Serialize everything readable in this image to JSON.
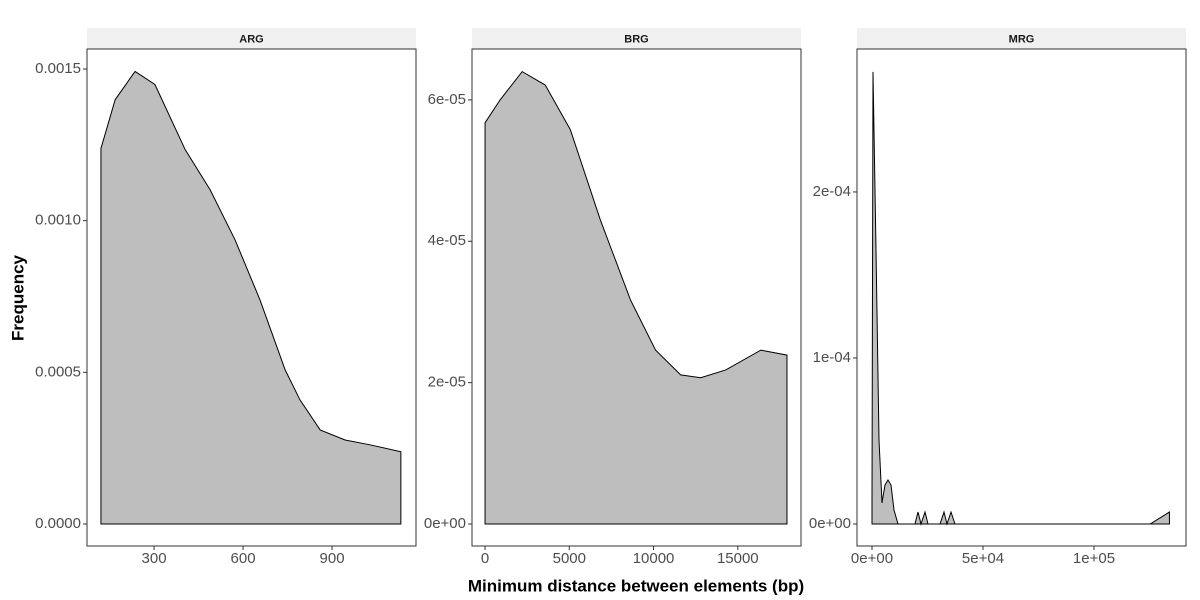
{
  "xlabel": "Minimum distance between elements (bp)",
  "ylabel": "Frequency",
  "chart_data": [
    {
      "type": "area",
      "title": "ARG",
      "color": "#bebebe",
      "x": [
        121,
        169,
        236,
        303,
        405,
        489,
        573,
        657,
        742,
        792,
        860,
        944,
        1028,
        1132
      ],
      "values": [
        0.001238,
        0.001399,
        0.001492,
        0.001449,
        0.001234,
        0.001102,
        0.000937,
        0.000739,
        0.000508,
        0.000409,
        0.00031,
        0.000277,
        0.000261,
        0.000238
      ],
      "xlim": [
        74,
        1183
      ],
      "ylim": [
        -7.26e-05,
        0.001566
      ],
      "xticks": [
        300,
        600,
        900
      ],
      "yticks": [
        {
          "value": 0,
          "label": "0.0000"
        },
        {
          "value": 0.0005,
          "label": "0.0005"
        },
        {
          "value": 0.001,
          "label": "0.0010"
        },
        {
          "value": 0.0015,
          "label": "0.0015"
        }
      ]
    },
    {
      "type": "area",
      "title": "BRG",
      "color": "#bebebe",
      "x": [
        0,
        893,
        2202,
        3571,
        5060,
        6845,
        8631,
        10119,
        11607,
        12798,
        14286,
        16369,
        17917
      ],
      "values": [
        5.676e-05,
        6e-05,
        6.4e-05,
        6.21e-05,
        5.58e-05,
        4.3e-05,
        3.17e-05,
        2.46e-05,
        2.11e-05,
        2.07e-05,
        2.18e-05,
        2.46e-05,
        2.39e-05
      ],
      "xlim": [
        -774,
        18750
      ],
      "ylim": [
        -3.11e-06,
        6.72e-05
      ],
      "xticks": [
        0,
        5000,
        10000,
        15000
      ],
      "yticks": [
        {
          "value": 0,
          "label": "0e+00"
        },
        {
          "value": 2e-05,
          "label": "2e-05"
        },
        {
          "value": 4e-05,
          "label": "4e-05"
        },
        {
          "value": 6e-05,
          "label": "6e-05"
        }
      ]
    },
    {
      "type": "area",
      "title": "MRG",
      "color": "#bebebe",
      "x": [
        0,
        450,
        1802,
        3153,
        4505,
        5856,
        7207,
        8559,
        9910,
        11712,
        19369,
        20721,
        22072,
        23874,
        25225,
        30631,
        32432,
        33784,
        35586,
        37387,
        125279,
        133982
      ],
      "values": [
        1.45e-05,
        0.0002723,
        0.0001651,
        5.06e-05,
        1.27e-05,
        2.35e-05,
        2.65e-05,
        2.35e-05,
        8.4e-06,
        0,
        0,
        7.2e-06,
        0,
        7.2e-06,
        0,
        0,
        7.2e-06,
        0,
        7.2e-06,
        0,
        0,
        7.2e-06
      ],
      "xlim": [
        -6757,
        141441
      ],
      "ylim": [
        -1.325e-05,
        0.0002861
      ],
      "xticks": [
        {
          "value": 0,
          "label": "0e+00"
        },
        {
          "value": 50000,
          "label": "5e+04"
        },
        {
          "value": 100000,
          "label": "1e+05"
        }
      ],
      "yticks": [
        {
          "value": 0,
          "label": "0e+00"
        },
        {
          "value": 0.0001,
          "label": "1e-04"
        },
        {
          "value": 0.0002,
          "label": "2e-04"
        }
      ]
    }
  ]
}
